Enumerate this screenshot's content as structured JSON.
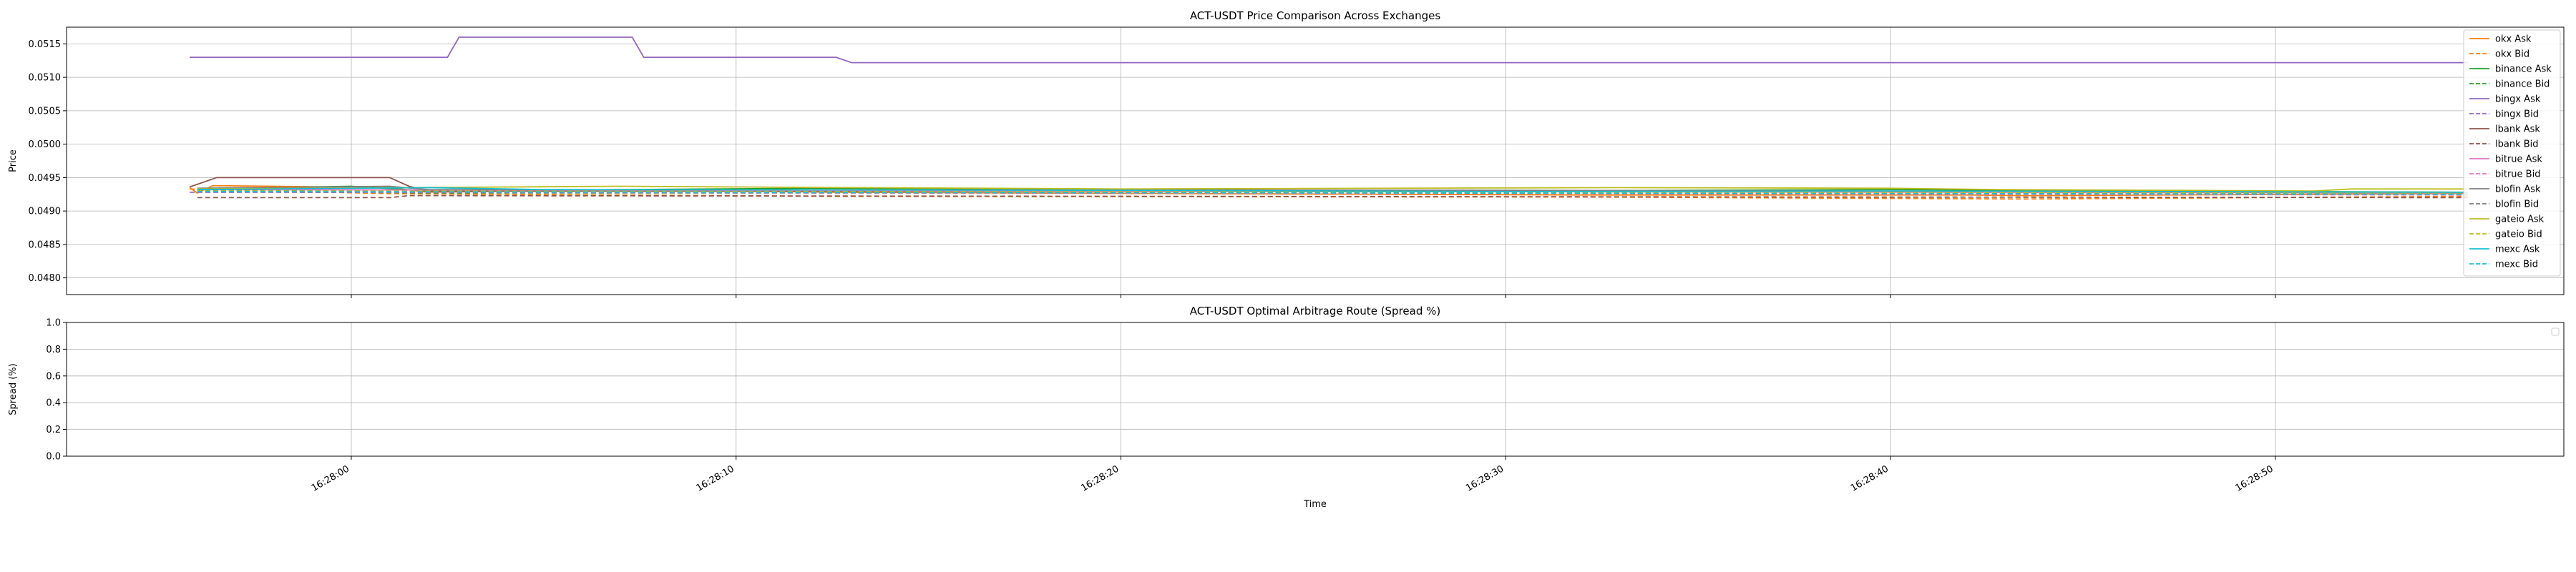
{
  "chart_data": [
    {
      "type": "line",
      "title": "ACT-USDT Price Comparison Across Exchanges",
      "xlabel": "",
      "ylabel": "Price",
      "ylim": [
        0.04775,
        0.05175
      ],
      "yticks": [
        0.048,
        0.0485,
        0.049,
        0.0495,
        0.05,
        0.0505,
        0.051,
        0.0515
      ],
      "ytick_labels": [
        "0.0480",
        "0.0485",
        "0.0490",
        "0.0495",
        "0.0500",
        "0.0505",
        "0.0510",
        "0.0515"
      ],
      "xlim": [
        "16:27:52.6",
        "16:28:57.5"
      ],
      "xticks": [
        "16:28:00",
        "16:28:10",
        "16:28:20",
        "16:28:30",
        "16:28:40",
        "16:28:50"
      ],
      "grid": true,
      "legend": "upper right",
      "series": [
        {
          "name": "okx Ask",
          "color": "#ff7f0e",
          "dashed": false,
          "points": [
            [
              "16:27:55.8",
              0.04935
            ],
            [
              "16:27:56.0",
              0.04927
            ],
            [
              "16:27:56.4",
              0.04938
            ],
            [
              "16:28:01.0",
              0.04935
            ],
            [
              "16:28:02.0",
              0.04928
            ],
            [
              "16:28:07.0",
              0.04932
            ],
            [
              "16:28:12.5",
              0.04928
            ],
            [
              "16:28:17.0",
              0.04927
            ],
            [
              "16:28:32.0",
              0.04924
            ],
            [
              "16:28:42.0",
              0.04924
            ],
            [
              "16:28:43.5",
              0.04923
            ],
            [
              "16:28:55.0",
              0.04926
            ]
          ]
        },
        {
          "name": "okx Bid",
          "color": "#ff7f0e",
          "dashed": true,
          "points": [
            [
              "16:27:55.8",
              0.04933
            ],
            [
              "16:28:01.0",
              0.04926
            ],
            [
              "16:28:12.5",
              0.04922
            ],
            [
              "16:28:32.0",
              0.04921
            ],
            [
              "16:28:43.5",
              0.04918
            ],
            [
              "16:28:55.0",
              0.04922
            ]
          ]
        },
        {
          "name": "binance Ask",
          "color": "#2ca02c",
          "dashed": false,
          "points": [
            [
              "16:27:56.0",
              0.04933
            ],
            [
              "16:28:00.0",
              0.04937
            ],
            [
              "16:28:02.0",
              0.0493
            ],
            [
              "16:28:12.0",
              0.04934
            ],
            [
              "16:28:30.0",
              0.0493
            ],
            [
              "16:28:40.0",
              0.04932
            ],
            [
              "16:28:55.0",
              0.04928
            ]
          ]
        },
        {
          "name": "binance Bid",
          "color": "#2ca02c",
          "dashed": true,
          "points": [
            [
              "16:27:56.0",
              0.0493
            ],
            [
              "16:28:02.0",
              0.04927
            ],
            [
              "16:28:30.0",
              0.04927
            ],
            [
              "16:28:55.0",
              0.04925
            ]
          ]
        },
        {
          "name": "bingx Ask",
          "color": "#9467bd",
          "dashed": false,
          "points": [
            [
              "16:27:55.8",
              0.0513
            ],
            [
              "16:28:02.5",
              0.0513
            ],
            [
              "16:28:02.8",
              0.0516
            ],
            [
              "16:28:07.3",
              0.0516
            ],
            [
              "16:28:07.6",
              0.0513
            ],
            [
              "16:28:12.6",
              0.0513
            ],
            [
              "16:28:13.0",
              0.05122
            ],
            [
              "16:28:55.0",
              0.05122
            ]
          ]
        },
        {
          "name": "bingx Bid",
          "color": "#9467bd",
          "dashed": true,
          "points": [
            [
              "16:27:55.8",
              0.04928
            ],
            [
              "16:28:55.0",
              0.04925
            ]
          ]
        },
        {
          "name": "lbank Ask",
          "color": "#8c564b",
          "dashed": false,
          "points": [
            [
              "16:27:55.8",
              0.04936
            ],
            [
              "16:27:56.5",
              0.0495
            ],
            [
              "16:28:01.0",
              0.0495
            ],
            [
              "16:28:01.5",
              0.04937
            ],
            [
              "16:28:02.0",
              0.0493
            ],
            [
              "16:28:55.0",
              0.04928
            ]
          ]
        },
        {
          "name": "lbank Bid",
          "color": "#8c564b",
          "dashed": true,
          "points": [
            [
              "16:27:56.0",
              0.0492
            ],
            [
              "16:28:01.0",
              0.0492
            ],
            [
              "16:28:01.5",
              0.04923
            ],
            [
              "16:28:55.0",
              0.0492
            ]
          ]
        },
        {
          "name": "bitrue Ask",
          "color": "#e377c2",
          "dashed": false,
          "points": [
            [
              "16:27:56.0",
              0.04932
            ],
            [
              "16:28:55.0",
              0.04927
            ]
          ]
        },
        {
          "name": "bitrue Bid",
          "color": "#e377c2",
          "dashed": true,
          "points": [
            [
              "16:27:56.0",
              0.04929
            ],
            [
              "16:28:55.0",
              0.04924
            ]
          ]
        },
        {
          "name": "blofin Ask",
          "color": "#7f7f7f",
          "dashed": false,
          "points": [
            [
              "16:27:56.0",
              0.04934
            ],
            [
              "16:28:01.0",
              0.04937
            ],
            [
              "16:28:02.0",
              0.04932
            ],
            [
              "16:28:30.0",
              0.04931
            ],
            [
              "16:28:55.0",
              0.04928
            ]
          ]
        },
        {
          "name": "blofin Bid",
          "color": "#7f7f7f",
          "dashed": true,
          "points": [
            [
              "16:27:56.0",
              0.04931
            ],
            [
              "16:28:02.0",
              0.04929
            ],
            [
              "16:28:55.0",
              0.04925
            ]
          ]
        },
        {
          "name": "gateio Ask",
          "color": "#bcbd22",
          "dashed": false,
          "points": [
            [
              "16:27:56.0",
              0.04933
            ],
            [
              "16:28:07.0",
              0.04937
            ],
            [
              "16:28:10.0",
              0.04936
            ],
            [
              "16:28:20.0",
              0.04933
            ],
            [
              "16:28:33.0",
              0.04935
            ],
            [
              "16:28:40.0",
              0.04934
            ],
            [
              "16:28:43.0",
              0.04932
            ],
            [
              "16:28:51.0",
              0.0493
            ],
            [
              "16:28:52.0",
              0.04933
            ],
            [
              "16:28:55.0",
              0.04933
            ]
          ]
        },
        {
          "name": "gateio Bid",
          "color": "#bcbd22",
          "dashed": true,
          "points": [
            [
              "16:27:56.0",
              0.0493
            ],
            [
              "16:28:55.0",
              0.04927
            ]
          ]
        },
        {
          "name": "mexc Ask",
          "color": "#17becf",
          "dashed": false,
          "points": [
            [
              "16:27:56.0",
              0.04932
            ],
            [
              "16:28:02.0",
              0.04935
            ],
            [
              "16:28:05.0",
              0.04932
            ],
            [
              "16:28:20.0",
              0.04931
            ],
            [
              "16:28:30.0",
              0.04929
            ],
            [
              "16:28:40.0",
              0.0493
            ],
            [
              "16:28:55.0",
              0.04928
            ]
          ]
        },
        {
          "name": "mexc Bid",
          "color": "#17becf",
          "dashed": true,
          "points": [
            [
              "16:27:56.0",
              0.04929
            ],
            [
              "16:28:55.0",
              0.04925
            ]
          ]
        }
      ]
    },
    {
      "type": "line",
      "title": "ACT-USDT Optimal Arbitrage Route (Spread %)",
      "xlabel": "Time",
      "ylabel": "Spread (%)",
      "ylim": [
        0.0,
        1.0
      ],
      "yticks": [
        0.0,
        0.2,
        0.4,
        0.6,
        0.8,
        1.0
      ],
      "ytick_labels": [
        "0.0",
        "0.2",
        "0.4",
        "0.6",
        "0.8",
        "1.0"
      ],
      "xlim": [
        "16:27:52.6",
        "16:28:57.5"
      ],
      "xticks": [
        "16:28:00",
        "16:28:10",
        "16:28:20",
        "16:28:30",
        "16:28:40",
        "16:28:50"
      ],
      "xtick_labels": [
        "16:28:00",
        "16:28:10",
        "16:28:20",
        "16:28:30",
        "16:28:40",
        "16:28:50"
      ],
      "grid": true,
      "legend": "upper right",
      "series": []
    }
  ]
}
